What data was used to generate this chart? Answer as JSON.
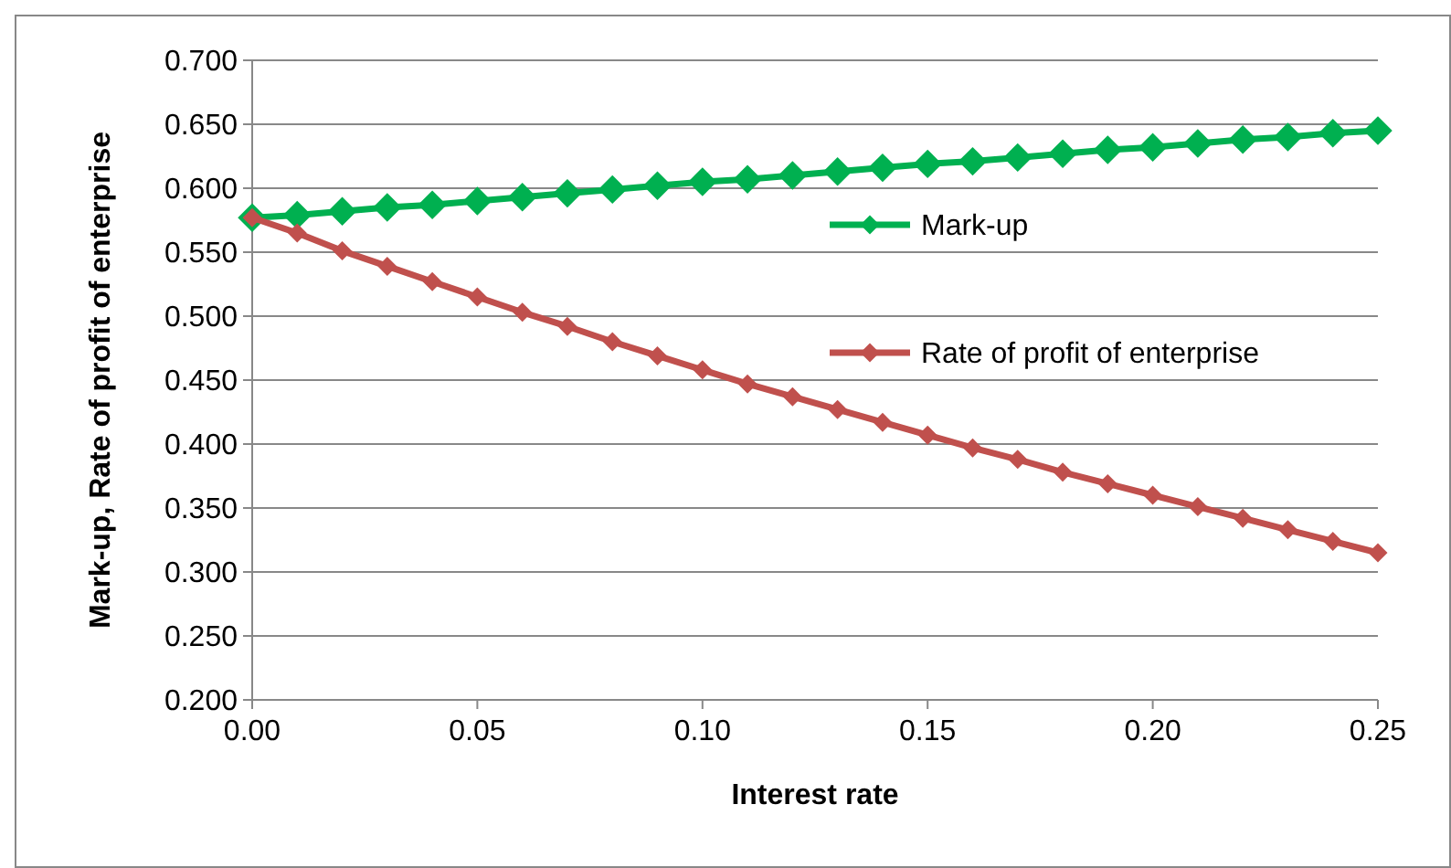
{
  "chart_data": {
    "type": "line",
    "xlabel": "Interest rate",
    "ylabel": "Mark-up, Rate of profit of enterprise",
    "x": [
      0,
      0.01,
      0.02,
      0.03,
      0.04,
      0.05,
      0.06,
      0.07,
      0.08,
      0.09,
      0.1,
      0.11,
      0.12,
      0.13,
      0.14,
      0.15,
      0.16,
      0.17,
      0.18,
      0.19,
      0.2,
      0.21,
      0.22,
      0.23,
      0.24,
      0.25
    ],
    "series": [
      {
        "name": "Mark-up",
        "color": "#00b050",
        "values": [
          0.577,
          0.579,
          0.582,
          0.585,
          0.587,
          0.59,
          0.593,
          0.596,
          0.599,
          0.602,
          0.605,
          0.607,
          0.61,
          0.613,
          0.616,
          0.619,
          0.621,
          0.624,
          0.627,
          0.63,
          0.632,
          0.635,
          0.638,
          0.64,
          0.643,
          0.645
        ]
      },
      {
        "name": "Rate of profit of enterprise",
        "color": "#c0504d",
        "values": [
          0.577,
          0.565,
          0.551,
          0.539,
          0.527,
          0.515,
          0.503,
          0.492,
          0.48,
          0.469,
          0.458,
          0.447,
          0.437,
          0.427,
          0.417,
          0.407,
          0.397,
          0.388,
          0.378,
          0.369,
          0.36,
          0.351,
          0.342,
          0.333,
          0.324,
          0.315
        ]
      }
    ],
    "xlim": [
      0,
      0.25
    ],
    "xticks": [
      {
        "value": 0,
        "label": "0.00"
      },
      {
        "value": 0.05,
        "label": "0.05"
      },
      {
        "value": 0.1,
        "label": "0.10"
      },
      {
        "value": 0.15,
        "label": "0.15"
      },
      {
        "value": 0.2,
        "label": "0.20"
      },
      {
        "value": 0.25,
        "label": "0.25"
      }
    ],
    "ylim": [
      0.2,
      0.7
    ],
    "yticks": [
      {
        "value": 0.2,
        "label": "0.200"
      },
      {
        "value": 0.25,
        "label": "0.250"
      },
      {
        "value": 0.3,
        "label": "0.300"
      },
      {
        "value": 0.35,
        "label": "0.350"
      },
      {
        "value": 0.4,
        "label": "0.400"
      },
      {
        "value": 0.45,
        "label": "0.450"
      },
      {
        "value": 0.5,
        "label": "0.500"
      },
      {
        "value": 0.55,
        "label": "0.550"
      },
      {
        "value": 0.6,
        "label": "0.600"
      },
      {
        "value": 0.65,
        "label": "0.650"
      },
      {
        "value": 0.7,
        "label": "0.700"
      }
    ],
    "grid": "y",
    "legend": "right",
    "marker": "diamond",
    "line_style": "solid"
  }
}
